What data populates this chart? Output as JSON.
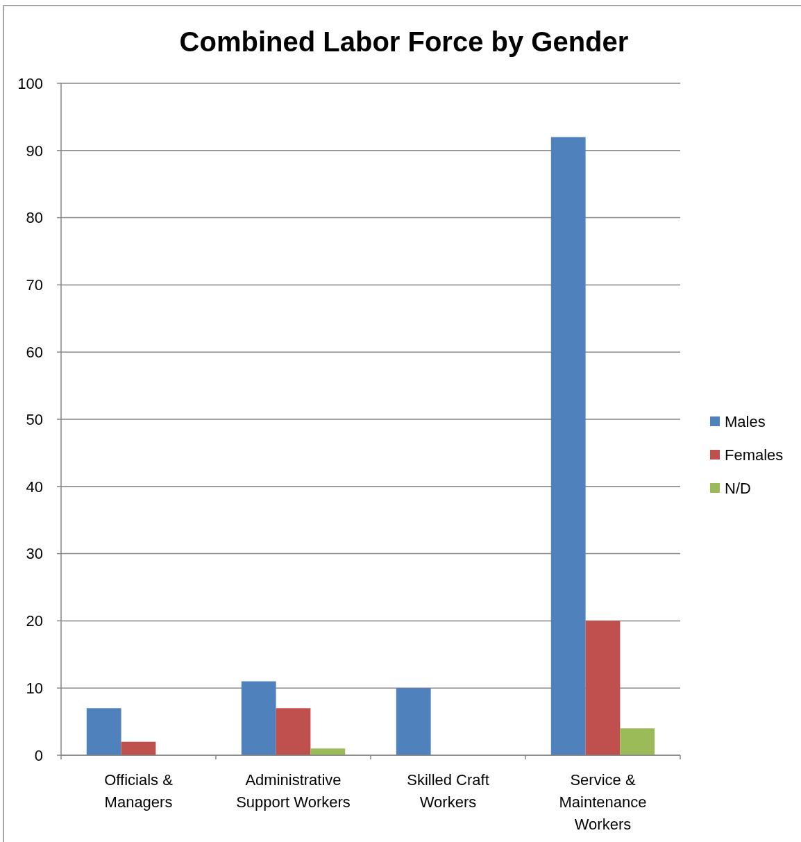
{
  "chart_data": {
    "type": "bar",
    "title": "Combined Labor Force by Gender",
    "categories": [
      "Officials & Managers",
      "Administrative Support Workers",
      "Skilled Craft Workers",
      "Service & Maintenance Workers"
    ],
    "series": [
      {
        "name": "Males",
        "color": "#4f81bd",
        "values": [
          7,
          11,
          10,
          92
        ]
      },
      {
        "name": "Females",
        "color": "#c0504d",
        "values": [
          2,
          7,
          0,
          20
        ]
      },
      {
        "name": "N/D",
        "color": "#9bbb59",
        "values": [
          0,
          1,
          0,
          4
        ]
      }
    ],
    "ylim": [
      0,
      100
    ],
    "yticks": [
      0,
      10,
      20,
      30,
      40,
      50,
      60,
      70,
      80,
      90,
      100
    ],
    "grid": "y",
    "legend": "right"
  }
}
